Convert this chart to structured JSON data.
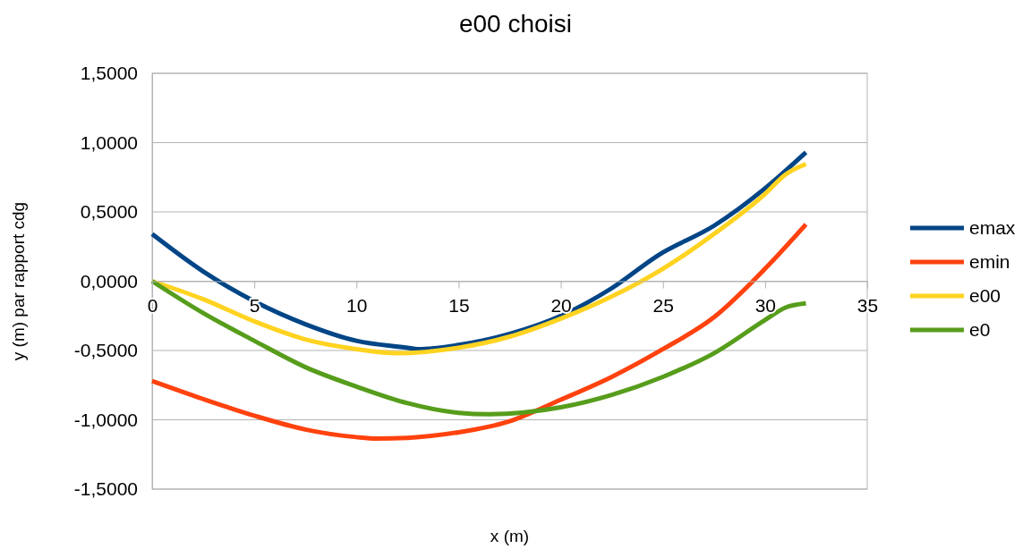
{
  "chart_data": {
    "type": "line",
    "title": "e00 choisi",
    "xlabel": "x (m)",
    "ylabel": "y (m) par rapport cdg",
    "xlim": [
      0,
      35
    ],
    "xticks": [
      0,
      5,
      10,
      15,
      20,
      25,
      30,
      35
    ],
    "ylim": [
      -1.5,
      1.5
    ],
    "yticks": [
      {
        "value": -1.5,
        "label": "-1,5000"
      },
      {
        "value": -1,
        "label": "-1,0000"
      },
      {
        "value": -0.5,
        "label": "-0,5000"
      },
      {
        "value": 0,
        "label": "0,0000"
      },
      {
        "value": 0.5,
        "label": "0,5000"
      },
      {
        "value": 1,
        "label": "1,0000"
      },
      {
        "value": 1.5,
        "label": "1,5000"
      }
    ],
    "grid": "y",
    "legend": "right",
    "marker": "none",
    "line_style": "solid",
    "series": [
      {
        "name": "emax",
        "color": "#004586",
        "x": [
          0,
          2.5,
          5,
          7.5,
          10,
          12.5,
          13,
          15,
          17.5,
          20,
          22.5,
          24.8,
          27.5,
          30,
          32
        ],
        "values": [
          0.34,
          0.07,
          -0.145,
          -0.31,
          -0.43,
          -0.48,
          -0.49,
          -0.46,
          -0.38,
          -0.25,
          -0.05,
          0.19,
          0.4,
          0.67,
          0.93
        ]
      },
      {
        "name": "emin",
        "color": "#ff420e",
        "x": [
          0,
          2.5,
          5,
          7.5,
          10,
          11,
          12.5,
          15,
          17.5,
          20,
          22.5,
          25,
          27.5,
          30,
          32
        ],
        "values": [
          -0.72,
          -0.85,
          -0.97,
          -1.07,
          -1.125,
          -1.135,
          -1.13,
          -1.09,
          -1.01,
          -0.855,
          -0.69,
          -0.49,
          -0.26,
          0.09,
          0.41
        ]
      },
      {
        "name": "e00",
        "color": "#ffd320",
        "x": [
          0,
          2.5,
          5,
          7.5,
          10,
          12,
          15,
          17.5,
          20,
          22.5,
          25,
          27.5,
          30,
          31,
          32
        ],
        "values": [
          0,
          -0.13,
          -0.29,
          -0.42,
          -0.49,
          -0.52,
          -0.48,
          -0.4,
          -0.27,
          -0.11,
          0.09,
          0.34,
          0.63,
          0.77,
          0.845
        ]
      },
      {
        "name": "e0",
        "color": "#579d1c",
        "x": [
          0,
          2.5,
          5,
          7.5,
          10,
          12.5,
          15,
          16.5,
          20,
          22.5,
          25,
          27.5,
          30,
          31,
          32
        ],
        "values": [
          0,
          -0.23,
          -0.43,
          -0.62,
          -0.76,
          -0.88,
          -0.95,
          -0.96,
          -0.91,
          -0.82,
          -0.69,
          -0.52,
          -0.28,
          -0.19,
          -0.16
        ]
      }
    ]
  }
}
